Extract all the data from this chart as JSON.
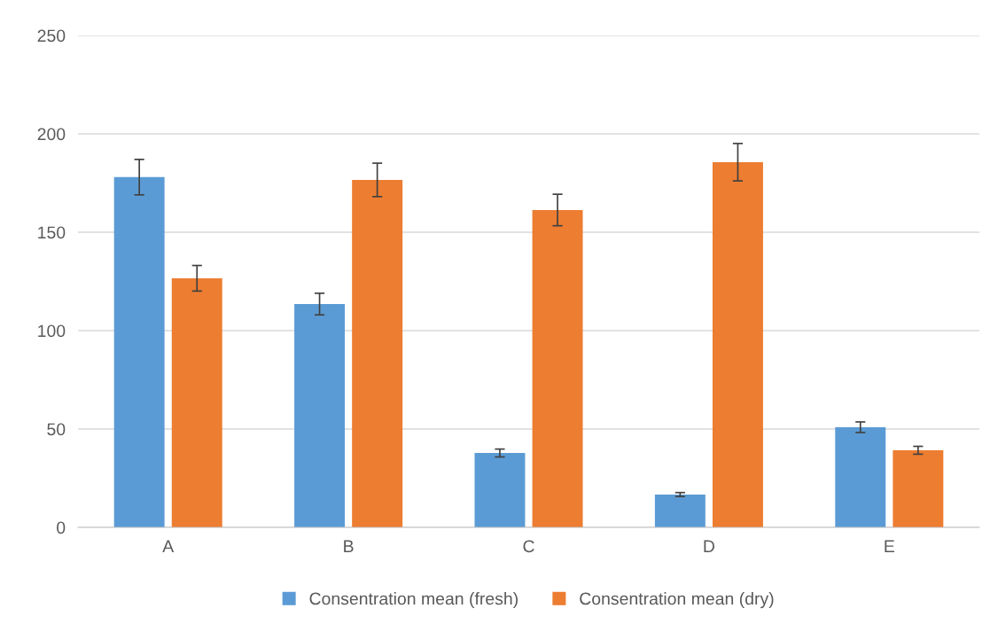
{
  "chart_data": {
    "type": "bar",
    "categories": [
      "A",
      "B",
      "C",
      "D",
      "E"
    ],
    "series": [
      {
        "name": "Consentration mean (fresh)",
        "color": "#5b9bd5",
        "values": [
          178,
          113.5,
          37.8,
          16.7,
          50.9
        ],
        "errors": [
          9,
          5.5,
          2,
          1,
          2.7
        ]
      },
      {
        "name": "Consentration mean (dry)",
        "color": "#ed7d31",
        "values": [
          126.6,
          176.6,
          161.3,
          185.6,
          39.2
        ],
        "errors": [
          6.5,
          8.5,
          8,
          9.5,
          2
        ]
      }
    ],
    "ylim": [
      0,
      250
    ],
    "yticks": [
      0,
      50,
      100,
      150,
      200,
      250
    ],
    "grid": "y",
    "legend": "bottom"
  }
}
